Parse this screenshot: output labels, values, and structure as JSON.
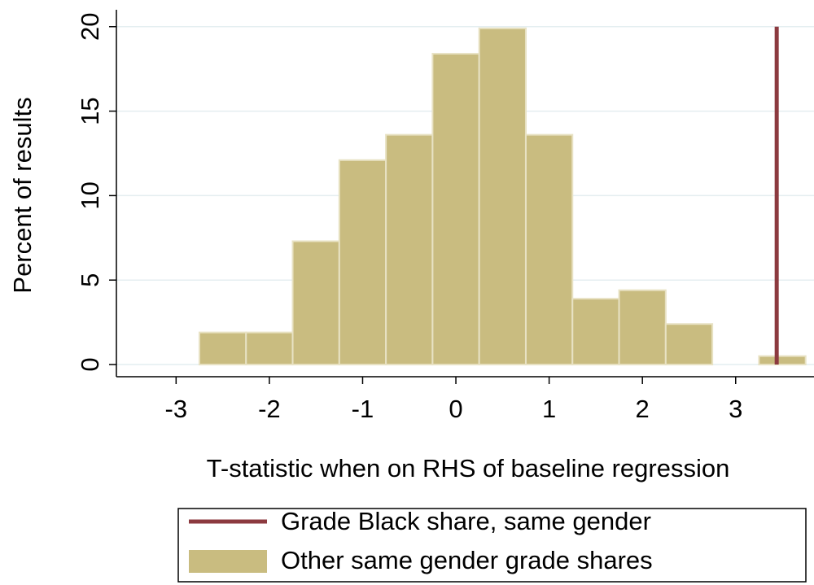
{
  "chart_data": {
    "type": "histogram",
    "x_label": "T-statistic when on RHS of baseline regression",
    "y_label": "Percent of results",
    "bins": [
      -2.75,
      -2.25,
      -1.75,
      -1.25,
      -0.75,
      -0.25,
      0.25,
      0.75,
      1.25,
      1.75,
      2.25,
      2.75,
      3.25,
      3.75
    ],
    "series": [
      {
        "name": "Other same gender grade shares",
        "color": "#c9bc80",
        "values": [
          1.9,
          1.9,
          7.3,
          12.1,
          13.6,
          18.4,
          19.9,
          13.6,
          3.9,
          4.4,
          2.4,
          0,
          0.5
        ]
      }
    ],
    "reference_line": {
      "name": "Grade Black share, same gender",
      "x": 3.44,
      "color": "#8c3a3f"
    },
    "xlim": [
      -3.64,
      3.84
    ],
    "xticks": [
      -3,
      -2,
      -1,
      0,
      1,
      2,
      3
    ],
    "ylim": [
      -0.72,
      21
    ],
    "yticks": [
      0,
      5,
      10,
      15,
      20
    ],
    "grid": true
  }
}
